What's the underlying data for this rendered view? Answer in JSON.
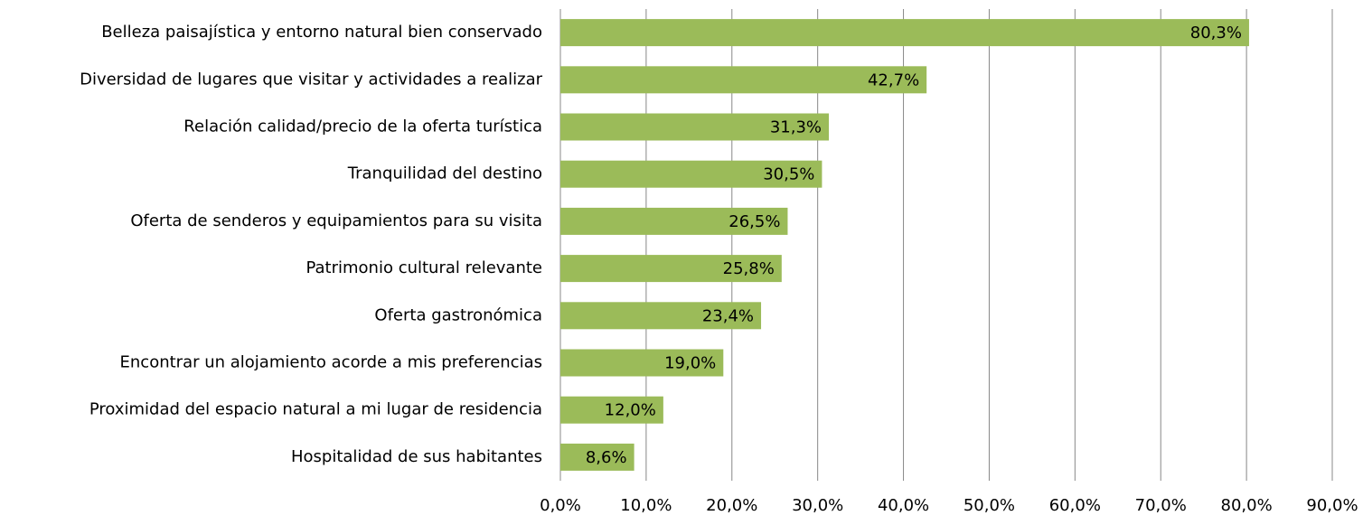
{
  "chart_data": {
    "type": "hbar",
    "categories": [
      "Belleza paisajística y entorno natural bien conservado",
      "Diversidad de lugares que visitar y actividades a realizar",
      "Relación calidad/precio de la oferta turística",
      "Tranquilidad del destino",
      "Oferta de senderos y equipamientos para su visita",
      "Patrimonio cultural relevante",
      "Oferta gastronómica",
      "Encontrar un alojamiento acorde a mis preferencias",
      "Proximidad del espacio natural a mi lugar de residencia",
      "Hospitalidad de sus habitantes"
    ],
    "values": [
      80.3,
      42.7,
      31.3,
      30.5,
      26.5,
      25.8,
      23.4,
      19.0,
      12.0,
      8.6
    ],
    "value_labels": [
      "80,3%",
      "42,7%",
      "31,3%",
      "30,5%",
      "26,5%",
      "25,8%",
      "23,4%",
      "19,0%",
      "12,0%",
      "8,6%"
    ],
    "color": "#9bbb59",
    "xlim": [
      0,
      90
    ],
    "xticks": [
      {
        "value": 0,
        "label": "0,0%"
      },
      {
        "value": 10,
        "label": "10,0%"
      },
      {
        "value": 20,
        "label": "20,0%"
      },
      {
        "value": 30,
        "label": "30,0%"
      },
      {
        "value": 40,
        "label": "40,0%"
      },
      {
        "value": 50,
        "label": "50,0%"
      },
      {
        "value": 60,
        "label": "60,0%"
      },
      {
        "value": 70,
        "label": "70,0%"
      },
      {
        "value": 80,
        "label": "80,0%"
      },
      {
        "value": 90,
        "label": "90,0%"
      }
    ],
    "grid": true
  }
}
